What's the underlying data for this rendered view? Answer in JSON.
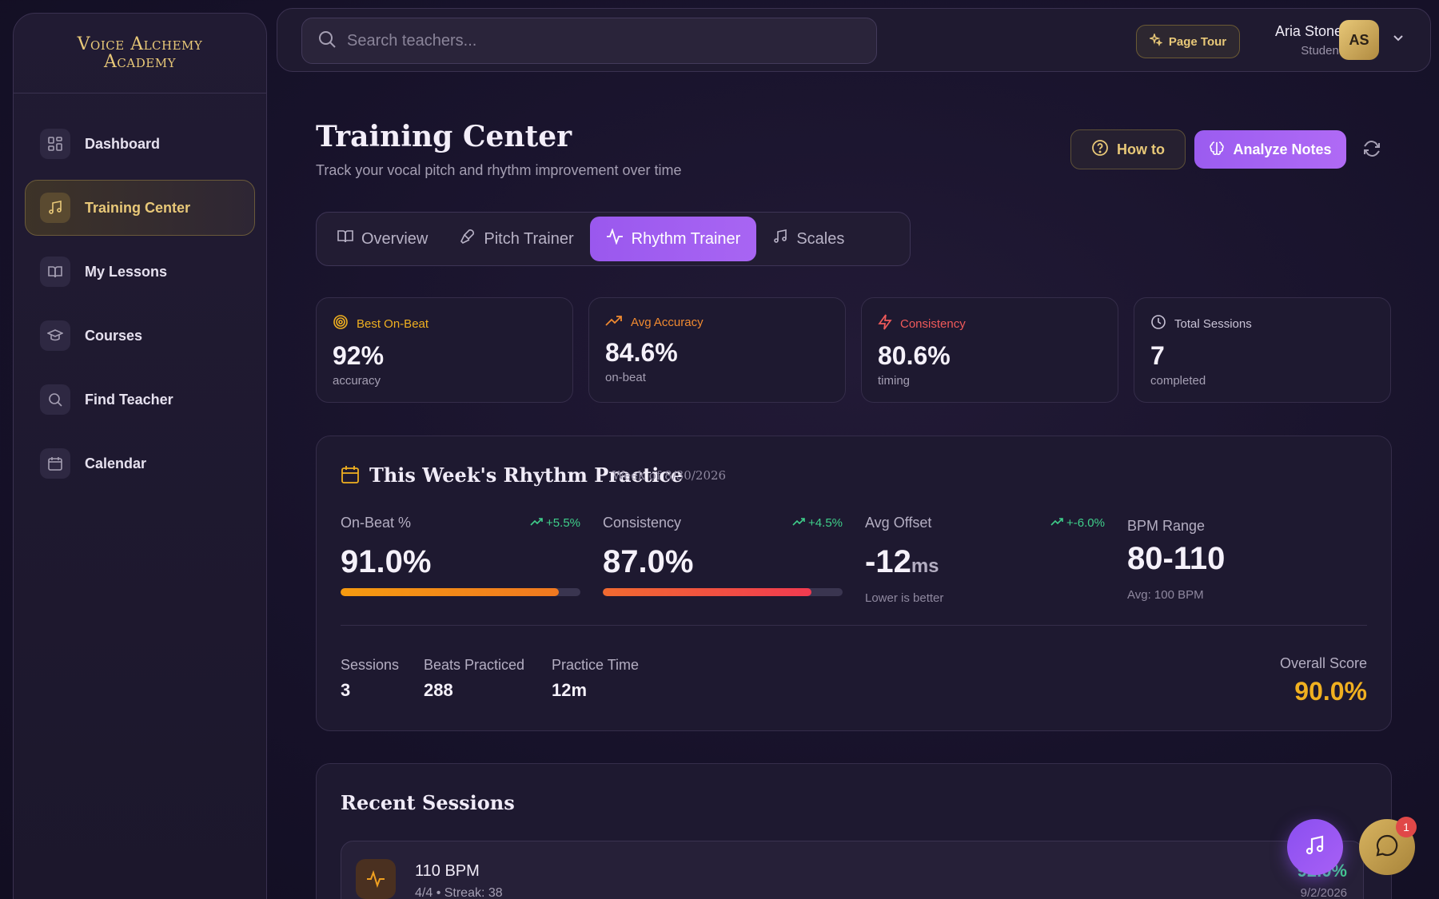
{
  "brand": {
    "line1": "Voice Alchemy",
    "line2": "Academy"
  },
  "sidebar": {
    "items": [
      {
        "label": "Dashboard",
        "icon": "grid-icon"
      },
      {
        "label": "Training Center",
        "icon": "music-note-icon",
        "active": true
      },
      {
        "label": "My Lessons",
        "icon": "book-icon"
      },
      {
        "label": "Courses",
        "icon": "graduation-cap-icon"
      },
      {
        "label": "Find Teacher",
        "icon": "search-icon"
      },
      {
        "label": "Calendar",
        "icon": "calendar-icon"
      }
    ]
  },
  "topbar": {
    "search_placeholder": "Search teachers...",
    "tour_label": "Page Tour",
    "user_name": "Aria Stone",
    "user_role": "Student",
    "avatar_initials": "AS"
  },
  "page": {
    "title": "Training Center",
    "subtitle": "Track your vocal pitch and rhythm improvement over time",
    "howto_label": "How to",
    "analyze_label": "Analyze Notes"
  },
  "tabs": [
    {
      "label": "Overview"
    },
    {
      "label": "Pitch Trainer"
    },
    {
      "label": "Rhythm Trainer",
      "active": true
    },
    {
      "label": "Scales"
    }
  ],
  "stats": [
    {
      "label": "Best On-Beat",
      "value": "92%",
      "unit": "accuracy",
      "color": "#f0b020"
    },
    {
      "label": "Avg Accuracy",
      "value": "84.6%",
      "unit": "on-beat",
      "color": "#f08a30"
    },
    {
      "label": "Consistency",
      "value": "80.6%",
      "unit": "timing",
      "color": "#f05a5a"
    },
    {
      "label": "Total Sessions",
      "value": "7",
      "unit": "completed",
      "color": "#c9c3d6"
    }
  ],
  "week": {
    "title": "This Week's Rhythm Practice",
    "subtitle": "Week of 8/30/2026",
    "onbeat": {
      "label": "On-Beat %",
      "delta": "+5.5%",
      "value": "91.0%",
      "fill": 0.91
    },
    "consistency": {
      "label": "Consistency",
      "delta": "+4.5%",
      "value": "87.0%",
      "fill": 0.87
    },
    "offset": {
      "label": "Avg Offset",
      "delta": "+-6.0%",
      "value": "-12",
      "unit": "ms",
      "note": "Lower is better"
    },
    "bpm": {
      "label": "BPM Range",
      "value": "80-110",
      "note": "Avg: 100 BPM"
    },
    "sessions": {
      "label": "Sessions",
      "value": "3"
    },
    "beats": {
      "label": "Beats Practiced",
      "value": "288"
    },
    "time": {
      "label": "Practice Time",
      "value": "12m"
    },
    "overall": {
      "label": "Overall Score",
      "value": "90.0%"
    }
  },
  "recent": {
    "title": "Recent Sessions",
    "sessions": [
      {
        "title": "110 BPM",
        "sub": "4/4 • Streak: 38",
        "score": "92.0%",
        "date": "9/2/2026"
      }
    ]
  },
  "chat_badge": "1"
}
